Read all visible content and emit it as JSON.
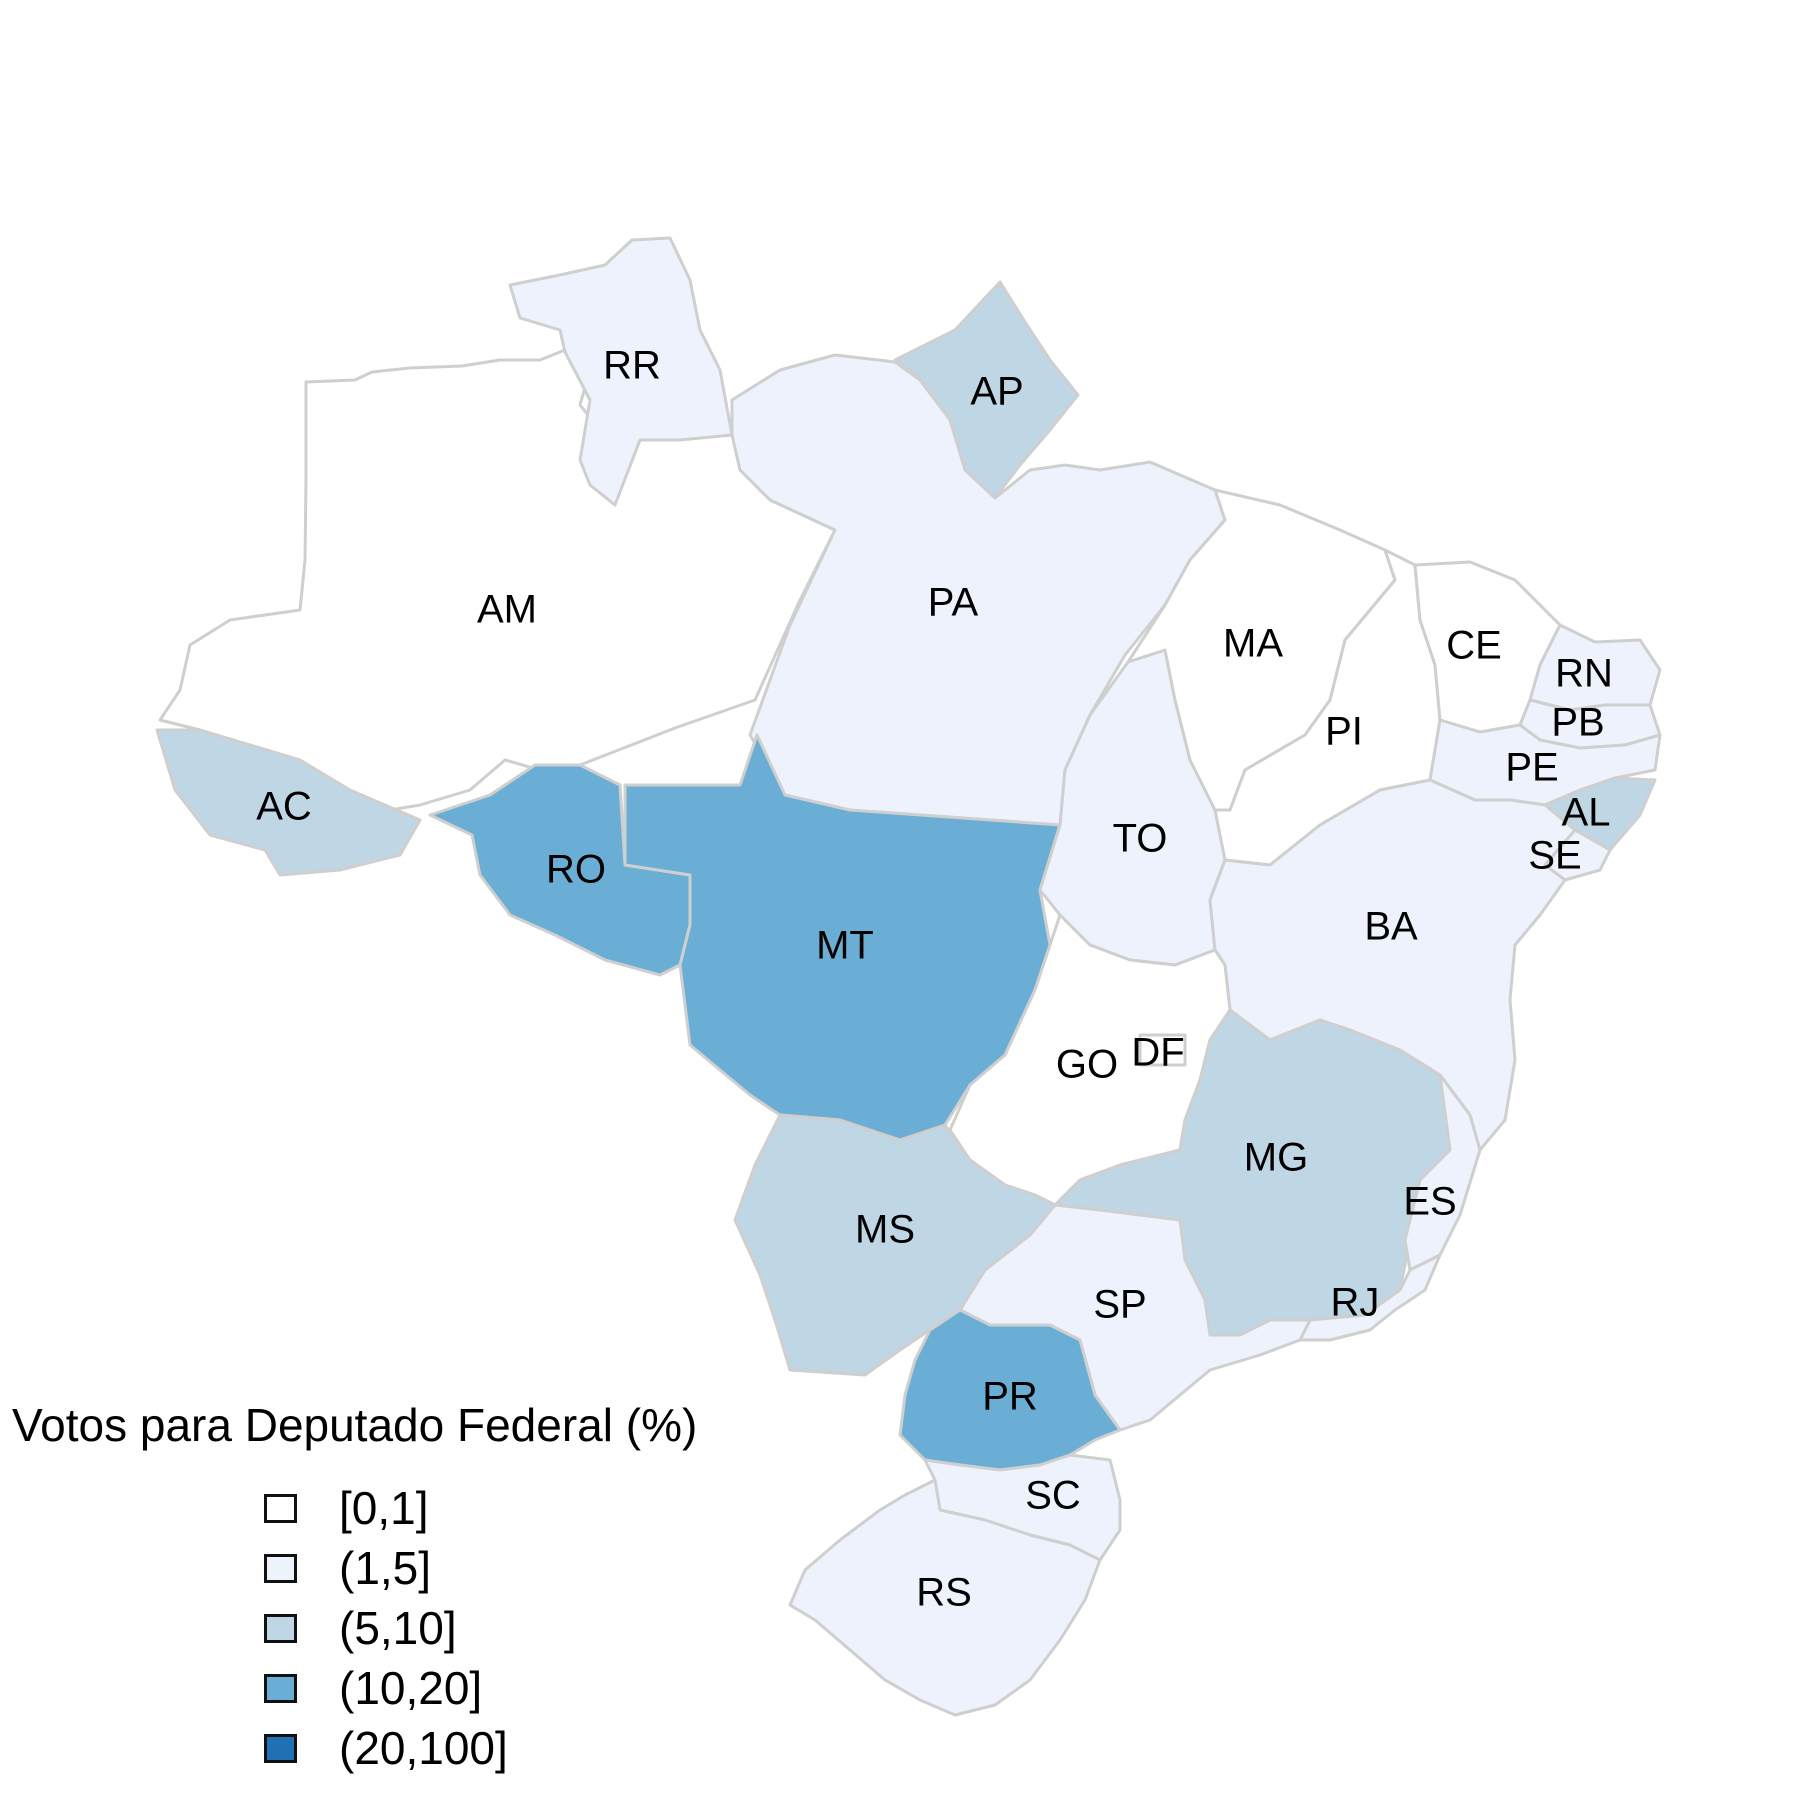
{
  "legend": {
    "title": "Votos para Deputado Federal (%)",
    "classes": [
      {
        "label": "[0,1]",
        "color": "#ffffff"
      },
      {
        "label": "(1,5]",
        "color": "#eef2fd"
      },
      {
        "label": "(5,10]",
        "color": "#bfd6e5"
      },
      {
        "label": "(10,20]",
        "color": "#6aaed6"
      },
      {
        "label": "(20,100]",
        "color": "#2070b4"
      }
    ]
  },
  "states": [
    {
      "code": "AM",
      "class": 0
    },
    {
      "code": "RR",
      "class": 1
    },
    {
      "code": "AP",
      "class": 2
    },
    {
      "code": "PA",
      "class": 1
    },
    {
      "code": "AC",
      "class": 2
    },
    {
      "code": "RO",
      "class": 3
    },
    {
      "code": "MT",
      "class": 3
    },
    {
      "code": "TO",
      "class": 1
    },
    {
      "code": "MA",
      "class": 0
    },
    {
      "code": "PI",
      "class": 0
    },
    {
      "code": "CE",
      "class": 0
    },
    {
      "code": "RN",
      "class": 1
    },
    {
      "code": "PB",
      "class": 1
    },
    {
      "code": "PE",
      "class": 1
    },
    {
      "code": "AL",
      "class": 2
    },
    {
      "code": "SE",
      "class": 1
    },
    {
      "code": "BA",
      "class": 1
    },
    {
      "code": "GO",
      "class": 0
    },
    {
      "code": "DF",
      "class": 0
    },
    {
      "code": "MG",
      "class": 2
    },
    {
      "code": "ES",
      "class": 1
    },
    {
      "code": "RJ",
      "class": 1
    },
    {
      "code": "SP",
      "class": 1
    },
    {
      "code": "MS",
      "class": 2
    },
    {
      "code": "PR",
      "class": 3
    },
    {
      "code": "SC",
      "class": 1
    },
    {
      "code": "RS",
      "class": 1
    }
  ]
}
